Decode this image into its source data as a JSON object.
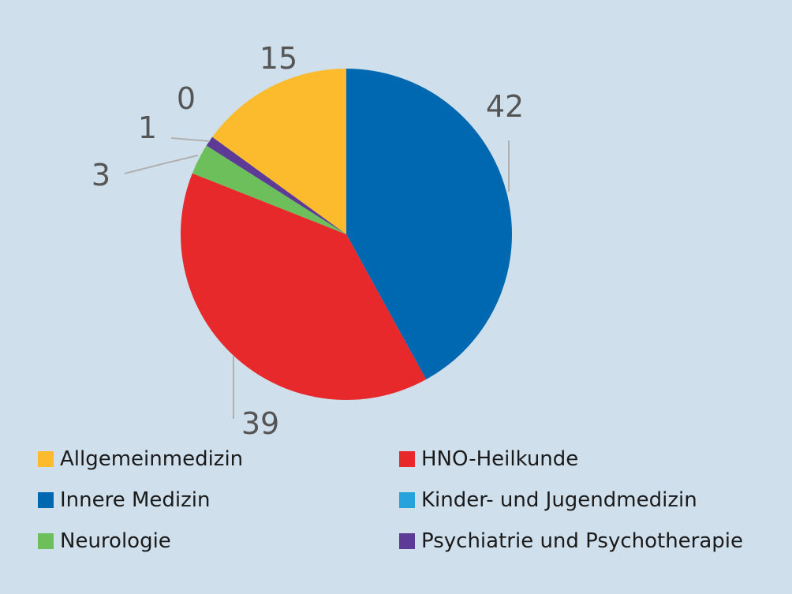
{
  "chart_data": {
    "type": "pie",
    "title": "",
    "slices": [
      {
        "label": "Innere Medizin",
        "value": 42,
        "data_label": "42",
        "color": "#0067b1"
      },
      {
        "label": "HNO-Heilkunde",
        "value": 39,
        "data_label": "39",
        "color": "#e8292c"
      },
      {
        "label": "Neurologie",
        "value": 3,
        "data_label": "3",
        "color": "#6cbf5a"
      },
      {
        "label": "Psychiatrie und Psychotherapie",
        "value": 1,
        "data_label": "1",
        "color": "#5c3a96"
      },
      {
        "label": "Kinder- und Jugendmedizin",
        "value": 0,
        "data_label": "0",
        "color": "#27a3dc"
      },
      {
        "label": "Allgemeinmedizin",
        "value": 15,
        "data_label": "15",
        "color": "#fbbb2c"
      }
    ],
    "legend": {
      "position": "bottom",
      "entries": [
        {
          "label": "Allgemeinmedizin",
          "color": "#fbbb2c"
        },
        {
          "label": "HNO-Heilkunde",
          "color": "#e8292c"
        },
        {
          "label": "Innere Medizin",
          "color": "#0067b1"
        },
        {
          "label": "Kinder- und Jugendmedizin",
          "color": "#27a3dc"
        },
        {
          "label": "Neurologie",
          "color": "#6cbf5a"
        },
        {
          "label": "Psychiatrie und Psychotherapie",
          "color": "#5c3a96"
        }
      ]
    }
  }
}
